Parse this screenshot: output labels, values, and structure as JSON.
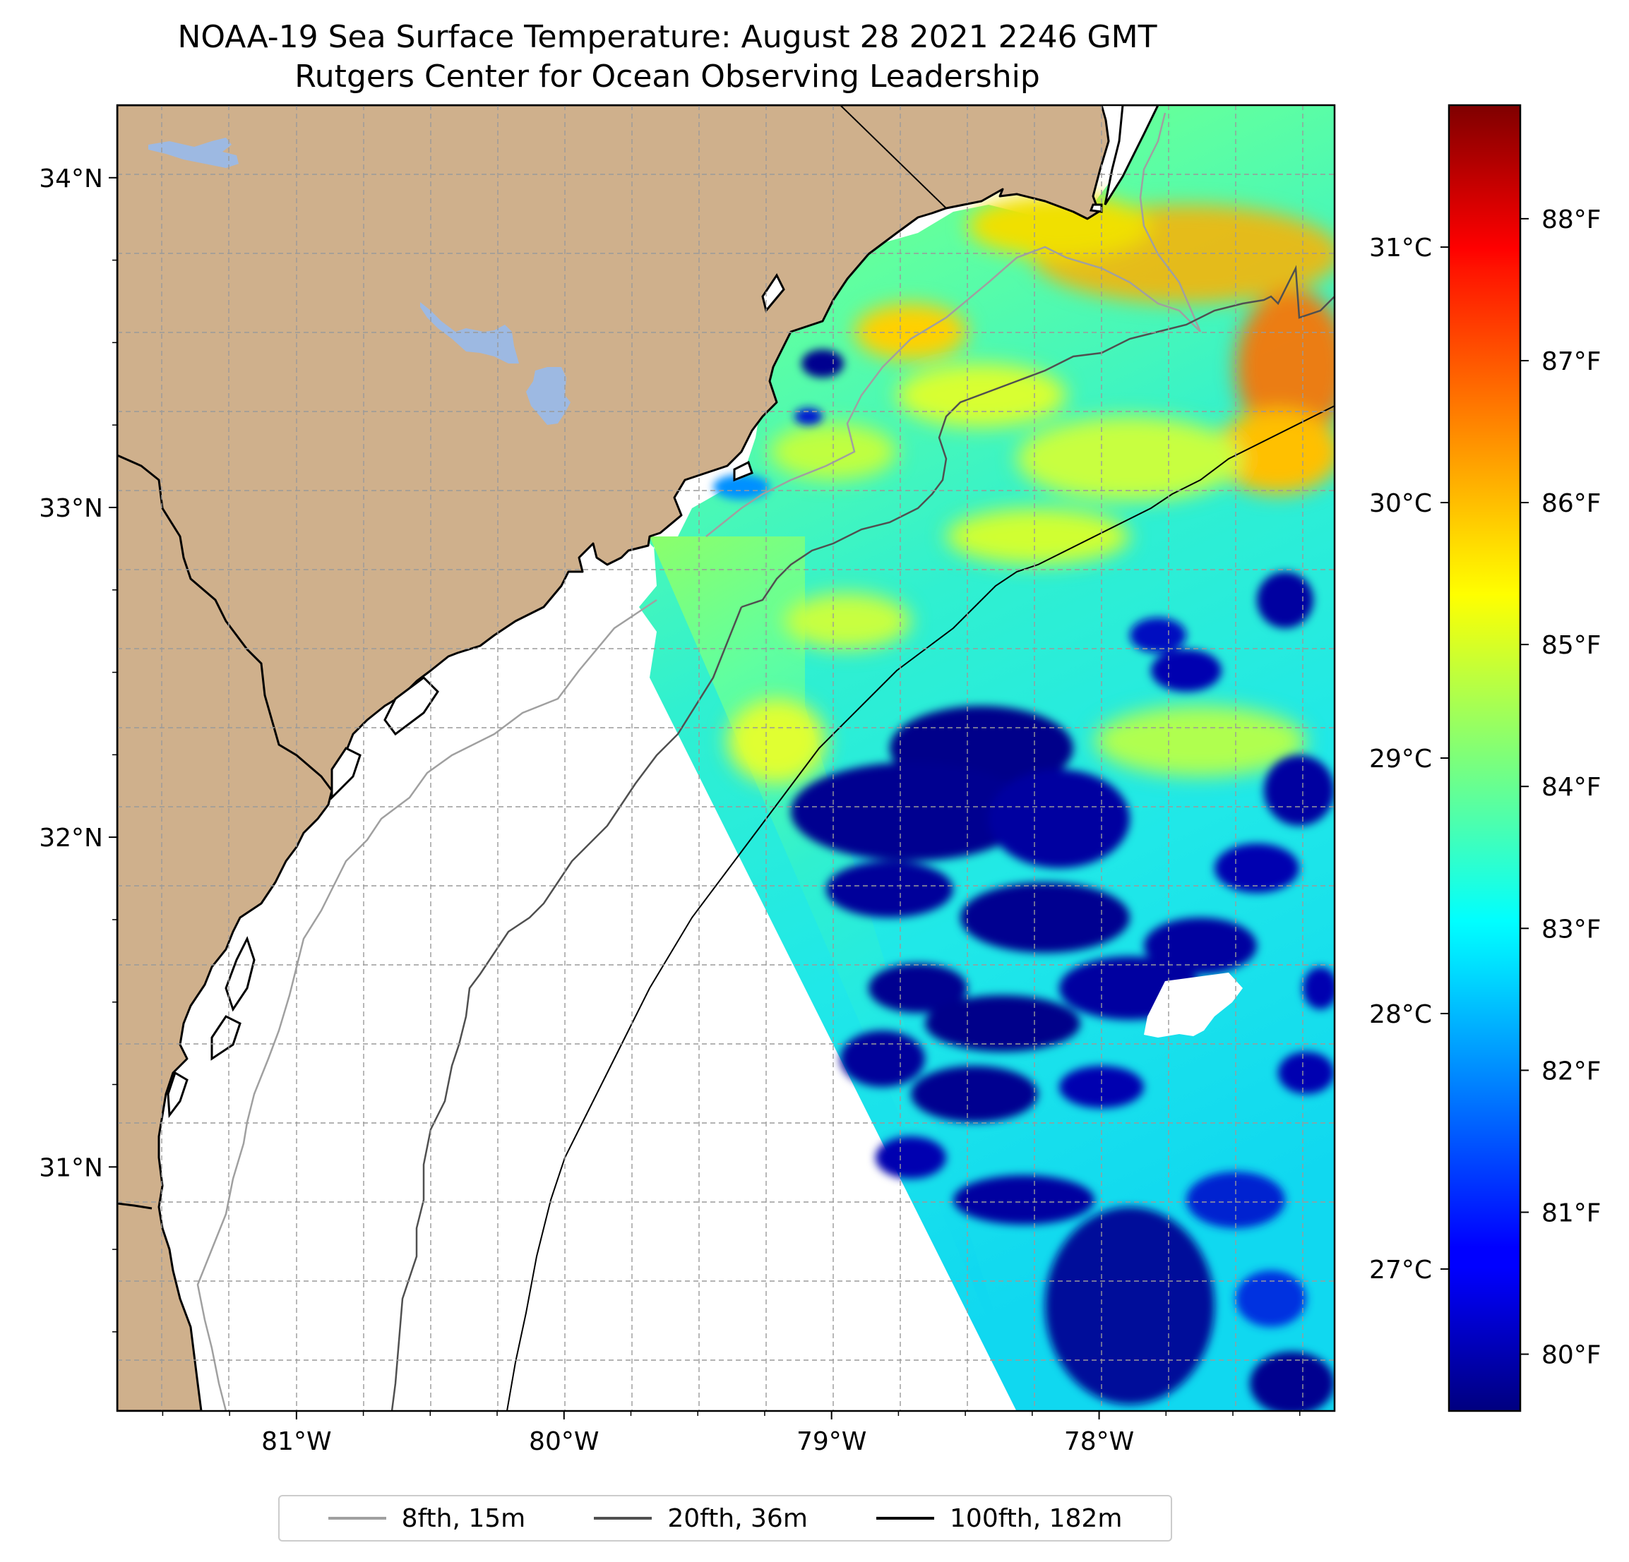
{
  "title": {
    "line1": "NOAA-19 Sea Surface Temperature: August 28 2021 2246 GMT",
    "line2": "Rutgers Center for Ocean Observing Leadership"
  },
  "map": {
    "extent": {
      "lon_min": -81.67,
      "lon_max": -77.12,
      "lat_min": 30.26,
      "lat_max": 34.22
    },
    "lon_ticks": [
      {
        "value": -81,
        "label": "81°W"
      },
      {
        "value": -80,
        "label": "80°W"
      },
      {
        "value": -79,
        "label": "79°W"
      },
      {
        "value": -78,
        "label": "78°W"
      }
    ],
    "lat_ticks": [
      {
        "value": 34,
        "label": "34°N"
      },
      {
        "value": 33,
        "label": "33°N"
      },
      {
        "value": 32,
        "label": "32°N"
      },
      {
        "value": 31,
        "label": "31°N"
      }
    ],
    "colors": {
      "land": "#cfb08c",
      "lake": "#9db9e2",
      "ocean_nodata": "#ffffff",
      "iso_8fth": "#a0a0a0",
      "iso_20fth": "#505050",
      "iso_100fth": "#000000"
    }
  },
  "colorbar": {
    "colormap": "jet",
    "f_min": 79.6,
    "f_max": 88.8,
    "celsius_ticks": [
      {
        "value": 31,
        "label": "31°C"
      },
      {
        "value": 30,
        "label": "30°C"
      },
      {
        "value": 29,
        "label": "29°C"
      },
      {
        "value": 28,
        "label": "28°C"
      },
      {
        "value": 27,
        "label": "27°C"
      }
    ],
    "fahrenheit_ticks": [
      {
        "value": 88,
        "label": "88°F"
      },
      {
        "value": 87,
        "label": "87°F"
      },
      {
        "value": 86,
        "label": "86°F"
      },
      {
        "value": 85,
        "label": "85°F"
      },
      {
        "value": 84,
        "label": "84°F"
      },
      {
        "value": 83,
        "label": "83°F"
      },
      {
        "value": 82,
        "label": "82°F"
      },
      {
        "value": 81,
        "label": "81°F"
      },
      {
        "value": 80,
        "label": "80°F"
      }
    ]
  },
  "legend": {
    "items": [
      {
        "label": "8fth, 15m",
        "color": "#a0a0a0"
      },
      {
        "label": "20fth, 36m",
        "color": "#505050"
      },
      {
        "label": "100fth, 182m",
        "color": "#000000"
      }
    ]
  }
}
